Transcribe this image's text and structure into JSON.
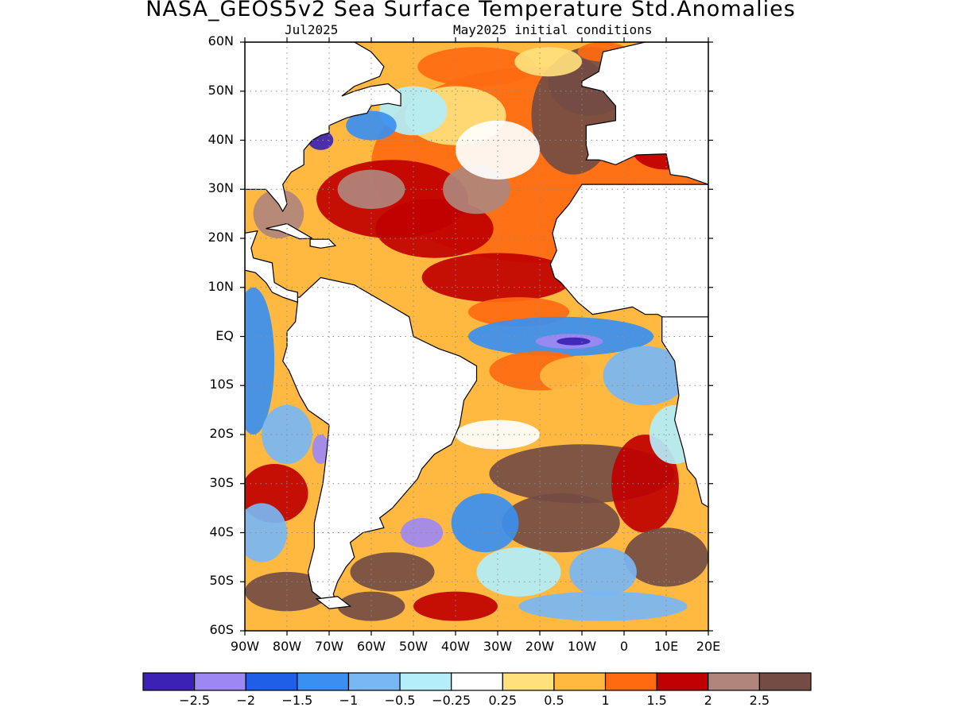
{
  "title": "NASA_GEOS5v2 Sea Surface Temperature Std.Anomalies",
  "subtitle_left": "Jul2025",
  "subtitle_right": "May2025 initial conditions",
  "axes": {
    "lat_labels": [
      "60N",
      "50N",
      "40N",
      "30N",
      "20N",
      "10N",
      "EQ",
      "10S",
      "20S",
      "30S",
      "40S",
      "50S",
      "60S"
    ],
    "lat_values": [
      60,
      50,
      40,
      30,
      20,
      10,
      0,
      -10,
      -20,
      -30,
      -40,
      -50,
      -60
    ],
    "lon_labels": [
      "90W",
      "80W",
      "70W",
      "60W",
      "50W",
      "40W",
      "30W",
      "20W",
      "10W",
      "0",
      "10E",
      "20E"
    ],
    "lon_values": [
      -90,
      -80,
      -70,
      -60,
      -50,
      -40,
      -30,
      -20,
      -10,
      0,
      10,
      20
    ],
    "lat_range": [
      -60,
      60
    ],
    "lon_range": [
      -90,
      20
    ],
    "grid": "dotted"
  },
  "colorbar": {
    "colors": [
      "#3b22b4",
      "#9d88f2",
      "#1f5fe8",
      "#3b8ff0",
      "#78b6f4",
      "#b3eefa",
      "#ffffff",
      "#ffe07c",
      "#ffb840",
      "#ff6a10",
      "#c00000",
      "#b0867c",
      "#744c44"
    ],
    "labels": [
      "-2.5",
      "-2",
      "-1.5",
      "-1",
      "-0.5",
      "-0.25",
      "0.25",
      "0.5",
      "1",
      "1.5",
      "2",
      "2.5"
    ]
  },
  "land_color": "#ffffff",
  "coast_color": "#000000"
}
